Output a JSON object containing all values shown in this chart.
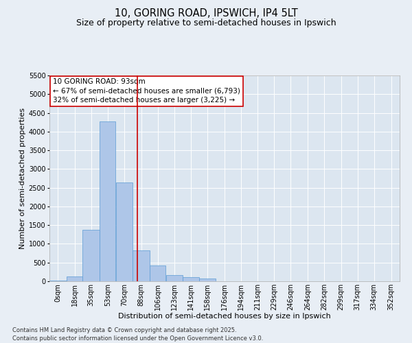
{
  "title_line1": "10, GORING ROAD, IPSWICH, IP4 5LT",
  "title_line2": "Size of property relative to semi-detached houses in Ipswich",
  "xlabel": "Distribution of semi-detached houses by size in Ipswich",
  "ylabel": "Number of semi-detached properties",
  "footnote": "Contains HM Land Registry data © Crown copyright and database right 2025.\nContains public sector information licensed under the Open Government Licence v3.0.",
  "annotation_title": "10 GORING ROAD: 93sqm",
  "annotation_line1": "← 67% of semi-detached houses are smaller (6,793)",
  "annotation_line2": "32% of semi-detached houses are larger (3,225) →",
  "property_size": 93,
  "bar_labels": [
    "0sqm",
    "18sqm",
    "35sqm",
    "53sqm",
    "70sqm",
    "88sqm",
    "106sqm",
    "123sqm",
    "141sqm",
    "158sqm",
    "176sqm",
    "194sqm",
    "211sqm",
    "229sqm",
    "246sqm",
    "264sqm",
    "282sqm",
    "299sqm",
    "317sqm",
    "334sqm",
    "352sqm"
  ],
  "bar_values": [
    10,
    130,
    1380,
    4280,
    2640,
    830,
    420,
    170,
    110,
    80,
    0,
    0,
    0,
    0,
    0,
    0,
    0,
    0,
    0,
    0,
    0
  ],
  "bar_edges": [
    0,
    18,
    35,
    53,
    70,
    88,
    106,
    123,
    141,
    158,
    176,
    194,
    211,
    229,
    246,
    264,
    282,
    299,
    317,
    334,
    352
  ],
  "bar_color": "#aec6e8",
  "bar_edge_color": "#5b9bd5",
  "vline_color": "#cc0000",
  "vline_x": 93,
  "annotation_box_color": "#cc0000",
  "ylim": [
    0,
    5500
  ],
  "yticks": [
    0,
    500,
    1000,
    1500,
    2000,
    2500,
    3000,
    3500,
    4000,
    4500,
    5000,
    5500
  ],
  "bg_color": "#e8eef5",
  "plot_bg_color": "#dce6f0",
  "grid_color": "#ffffff",
  "title_fontsize": 10.5,
  "subtitle_fontsize": 9,
  "axis_label_fontsize": 8,
  "tick_fontsize": 7,
  "annotation_fontsize": 7.5,
  "footnote_fontsize": 6
}
